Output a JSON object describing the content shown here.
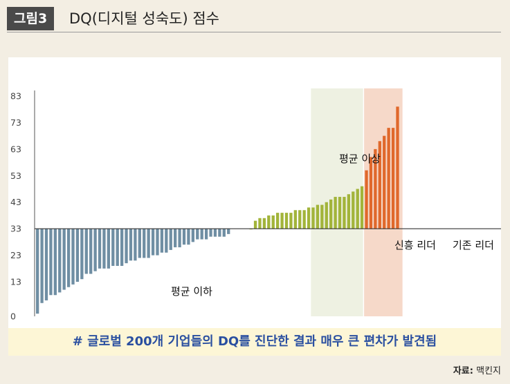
{
  "header": {
    "figure_label": "그림3",
    "title": "DQ(디지털 성숙도) 점수"
  },
  "caption": "# 글로벌 200개 기업들의 DQ를 진단한 결과 매우 큰 편차가 발견됨",
  "source": {
    "label": "자료:",
    "value": "맥킨지"
  },
  "colors": {
    "below_average": "#6f8ea3",
    "above_average": "#a2b43a",
    "incumbent_leader": "#e0682b",
    "emerging_zone": "#eef1e2",
    "incumbent_zone": "#f6d9c9",
    "caption_text": "#2a4fa0",
    "caption_bg": "#fdf6d6"
  },
  "chart_data": {
    "type": "bar",
    "title": "DQ(디지털 성숙도) 점수",
    "y_ticks": [
      0,
      13,
      23,
      33,
      43,
      53,
      63,
      73,
      83
    ],
    "ylim": [
      0,
      83
    ],
    "baseline": 33,
    "grid": false,
    "annotations": {
      "below_average": "평균 이하",
      "above_average": "평균 이상",
      "emerging_leaders": "신흥 리더",
      "incumbent_leaders": "기존 리더"
    },
    "series": [
      {
        "group": "below_average",
        "values": [
          1,
          5,
          6,
          8,
          8,
          9,
          10,
          11,
          12,
          13,
          14,
          16,
          16,
          17,
          18,
          18,
          18,
          19,
          19,
          19,
          20,
          21,
          21,
          22,
          22,
          22,
          23,
          23,
          24,
          24,
          25,
          26,
          26,
          27,
          27,
          28,
          29,
          29,
          29,
          30,
          30,
          30,
          30,
          31
        ]
      },
      {
        "group": "above_average",
        "values": [
          33,
          36,
          37,
          37,
          38,
          38,
          39,
          39,
          39,
          39,
          40,
          40,
          40,
          41,
          41,
          42,
          42,
          43,
          44,
          45,
          45,
          45,
          46,
          47,
          48,
          49
        ]
      },
      {
        "group": "incumbent_leader",
        "values": [
          55,
          60,
          63,
          66,
          68,
          71,
          71,
          79
        ]
      }
    ]
  }
}
